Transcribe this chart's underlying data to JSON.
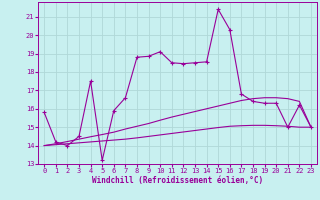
{
  "xlabel": "Windchill (Refroidissement éolien,°C)",
  "background_color": "#c8f0f0",
  "grid_color": "#b0d8d8",
  "line_color": "#990099",
  "xlim": [
    -0.5,
    23.5
  ],
  "ylim": [
    13,
    21.8
  ],
  "yticks": [
    13,
    14,
    15,
    16,
    17,
    18,
    19,
    20,
    21
  ],
  "xticks": [
    0,
    1,
    2,
    3,
    4,
    5,
    6,
    7,
    8,
    9,
    10,
    11,
    12,
    13,
    14,
    15,
    16,
    17,
    18,
    19,
    20,
    21,
    22,
    23
  ],
  "x": [
    0,
    1,
    2,
    3,
    4,
    5,
    6,
    7,
    8,
    9,
    10,
    11,
    12,
    13,
    14,
    15,
    16,
    17,
    18,
    19,
    20,
    21,
    22,
    23
  ],
  "series1": [
    15.8,
    14.2,
    14.0,
    14.5,
    17.5,
    13.2,
    15.9,
    16.6,
    18.8,
    18.85,
    19.1,
    18.5,
    18.45,
    18.5,
    18.55,
    21.4,
    20.3,
    16.8,
    16.4,
    16.3,
    16.3,
    15.0,
    16.2,
    15.0
  ],
  "series2": [
    14.0,
    14.05,
    14.1,
    14.15,
    14.2,
    14.25,
    14.3,
    14.35,
    14.42,
    14.5,
    14.58,
    14.66,
    14.74,
    14.82,
    14.9,
    14.98,
    15.05,
    15.08,
    15.1,
    15.1,
    15.08,
    15.05,
    15.0,
    15.0
  ],
  "series3": [
    14.0,
    14.1,
    14.22,
    14.35,
    14.48,
    14.6,
    14.73,
    14.9,
    15.05,
    15.2,
    15.38,
    15.55,
    15.7,
    15.85,
    16.0,
    16.15,
    16.3,
    16.45,
    16.55,
    16.6,
    16.6,
    16.55,
    16.4,
    15.0
  ]
}
